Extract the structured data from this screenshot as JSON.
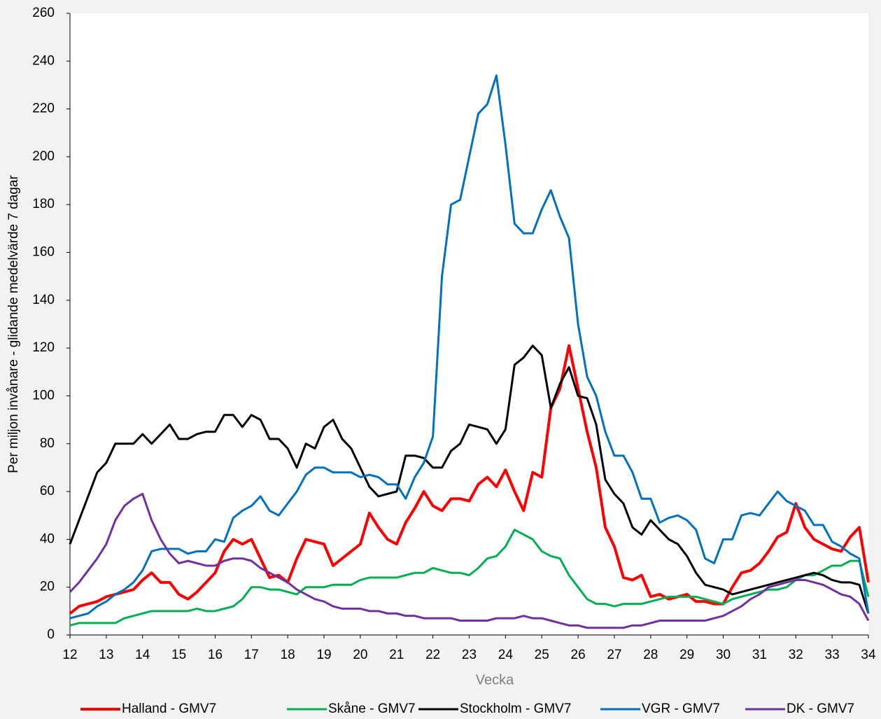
{
  "chart_data": {
    "type": "line",
    "y_label": "Per miljon invånare - glidande medelvärde 7 dagar",
    "x_label": "Vecka",
    "x": [
      12,
      12.25,
      12.5,
      12.75,
      13,
      13.25,
      13.5,
      13.75,
      14,
      14.25,
      14.5,
      14.75,
      15,
      15.25,
      15.5,
      15.75,
      16,
      16.25,
      16.5,
      16.75,
      17,
      17.25,
      17.5,
      17.75,
      18,
      18.25,
      18.5,
      18.75,
      19,
      19.25,
      19.5,
      19.75,
      20,
      20.25,
      20.5,
      20.75,
      21,
      21.25,
      21.5,
      21.75,
      22,
      22.25,
      22.5,
      22.75,
      23,
      23.25,
      23.5,
      23.75,
      24,
      24.25,
      24.5,
      24.75,
      25,
      25.25,
      25.5,
      25.75,
      26,
      26.25,
      26.5,
      26.75,
      27,
      27.25,
      27.5,
      27.75,
      28,
      28.25,
      28.5,
      28.75,
      29,
      29.25,
      29.5,
      29.75,
      30,
      30.25,
      30.5,
      30.75,
      31,
      31.25,
      31.5,
      31.75,
      32,
      32.25,
      32.5,
      32.75,
      33,
      33.25,
      33.5,
      33.75,
      34
    ],
    "xlim": [
      12,
      34
    ],
    "xticks": [
      12,
      13,
      14,
      15,
      16,
      17,
      18,
      19,
      20,
      21,
      22,
      23,
      24,
      25,
      26,
      27,
      28,
      29,
      30,
      31,
      32,
      33,
      34
    ],
    "ylim": [
      0,
      260
    ],
    "yticks": [
      0,
      20,
      40,
      60,
      80,
      100,
      120,
      140,
      160,
      180,
      200,
      220,
      240,
      260
    ],
    "series": [
      {
        "name": "Halland - GMV7",
        "color": "#ff0000",
        "width": 4,
        "values": [
          9,
          12,
          13,
          14,
          16,
          17,
          18,
          19,
          23,
          26,
          22,
          22,
          17,
          15,
          18,
          22,
          26,
          35,
          40,
          38,
          40,
          32,
          24,
          25,
          22,
          32,
          40,
          39,
          38,
          29,
          32,
          35,
          38,
          51,
          45,
          40,
          38,
          47,
          53,
          60,
          54,
          52,
          57,
          57,
          56,
          63,
          66,
          62,
          69,
          60,
          52,
          68,
          66,
          95,
          103,
          121,
          103,
          85,
          70,
          45,
          37,
          24,
          23,
          25,
          16,
          17,
          15,
          16,
          17,
          14,
          14,
          13,
          13,
          20,
          26,
          27,
          30,
          35,
          41,
          43,
          55,
          45,
          40,
          38,
          36,
          35,
          41,
          45,
          22
        ]
      },
      {
        "name": "Skåne - GMV7",
        "color": "#00b050",
        "width": 3,
        "values": [
          4,
          5,
          5,
          5,
          5,
          5,
          7,
          8,
          9,
          10,
          10,
          10,
          10,
          10,
          11,
          10,
          10,
          11,
          12,
          15,
          20,
          20,
          19,
          19,
          18,
          17,
          20,
          20,
          20,
          21,
          21,
          21,
          23,
          24,
          24,
          24,
          24,
          25,
          26,
          26,
          28,
          27,
          26,
          26,
          25,
          28,
          32,
          33,
          37,
          44,
          42,
          40,
          35,
          33,
          32,
          25,
          20,
          15,
          13,
          13,
          12,
          13,
          13,
          13,
          14,
          15,
          16,
          16,
          16,
          16,
          15,
          14,
          13,
          15,
          16,
          17,
          18,
          19,
          19,
          20,
          23,
          25,
          25,
          27,
          29,
          29,
          31,
          31,
          16
        ]
      },
      {
        "name": "Stockholm - GMV7",
        "color": "#000000",
        "width": 3,
        "values": [
          38,
          48,
          58,
          68,
          72,
          80,
          80,
          80,
          84,
          80,
          84,
          88,
          82,
          82,
          84,
          85,
          85,
          92,
          92,
          87,
          92,
          90,
          82,
          82,
          78,
          70,
          80,
          78,
          87,
          90,
          82,
          78,
          70,
          62,
          58,
          59,
          60,
          75,
          75,
          74,
          70,
          70,
          77,
          80,
          88,
          87,
          86,
          80,
          86,
          113,
          116,
          121,
          117,
          95,
          105,
          112,
          100,
          99,
          88,
          65,
          59,
          55,
          45,
          42,
          48,
          44,
          40,
          38,
          33,
          26,
          21,
          20,
          19,
          17,
          18,
          19,
          20,
          21,
          22,
          23,
          24,
          25,
          26,
          25,
          23,
          22,
          22,
          21,
          9
        ]
      },
      {
        "name": "VGR - GMV7",
        "color": "#0070c0",
        "width": 3,
        "values": [
          7,
          8,
          9,
          12,
          14,
          17,
          19,
          22,
          27,
          35,
          36,
          36,
          36,
          34,
          35,
          35,
          40,
          39,
          49,
          52,
          54,
          58,
          52,
          50,
          55,
          60,
          67,
          70,
          70,
          68,
          68,
          68,
          66,
          67,
          66,
          63,
          63,
          57,
          66,
          72,
          83,
          150,
          180,
          182,
          200,
          218,
          222,
          234,
          205,
          172,
          168,
          168,
          178,
          186,
          175,
          166,
          130,
          108,
          100,
          85,
          75,
          75,
          68,
          57,
          57,
          47,
          49,
          50,
          48,
          44,
          32,
          30,
          40,
          40,
          50,
          51,
          50,
          55,
          60,
          56,
          54,
          52,
          46,
          46,
          39,
          37,
          34,
          32,
          9
        ]
      },
      {
        "name": "DK -  GMV7",
        "color": "#7030a0",
        "width": 3,
        "values": [
          18,
          22,
          27,
          32,
          38,
          48,
          54,
          57,
          59,
          48,
          40,
          34,
          30,
          31,
          30,
          29,
          29,
          31,
          32,
          32,
          31,
          28,
          26,
          24,
          22,
          19,
          17,
          15,
          14,
          12,
          11,
          11,
          11,
          10,
          10,
          9,
          9,
          8,
          8,
          7,
          7,
          7,
          7,
          6,
          6,
          6,
          6,
          7,
          7,
          7,
          8,
          7,
          7,
          6,
          5,
          4,
          4,
          3,
          3,
          3,
          3,
          3,
          4,
          4,
          5,
          6,
          6,
          6,
          6,
          6,
          6,
          7,
          8,
          10,
          12,
          15,
          17,
          20,
          21,
          22,
          23,
          23,
          22,
          21,
          19,
          17,
          16,
          13,
          6
        ]
      }
    ],
    "legend": "bottom"
  }
}
